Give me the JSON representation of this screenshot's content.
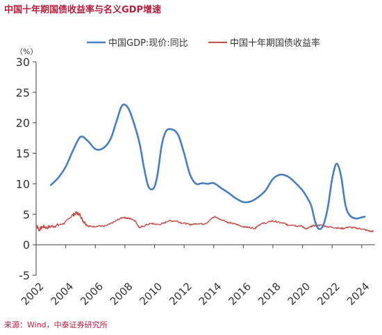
{
  "title": "中国十年期国债收益率与名义GDP增速",
  "source": "来源：Wind，中泰证券研究所",
  "unit_label": "（%）",
  "chart_data": {
    "type": "line",
    "title": "中国十年期国债收益率与名义GDP增速",
    "xlabel": "",
    "ylabel": "（%）",
    "xlim": [
      2002,
      2024.9
    ],
    "ylim": [
      -5,
      30
    ],
    "yticks": [
      -5,
      0,
      5,
      10,
      15,
      20,
      25,
      30
    ],
    "xticks": [
      "2002",
      "2004",
      "2006",
      "2008",
      "2010",
      "2012",
      "2014",
      "2016",
      "2018",
      "2020",
      "2022",
      "2024"
    ],
    "grid": false,
    "legend": "top",
    "series": [
      {
        "name": "中国GDP:现价:同比",
        "color": "#4a7ebb",
        "x": [
          2003.0,
          2003.5,
          2004.0,
          2004.5,
          2005.0,
          2005.5,
          2006.0,
          2006.5,
          2007.0,
          2007.4,
          2007.8,
          2008.2,
          2008.6,
          2009.0,
          2009.3,
          2009.6,
          2009.95,
          2010.2,
          2010.5,
          2010.8,
          2011.2,
          2011.6,
          2012.0,
          2012.4,
          2012.8,
          2013.2,
          2013.6,
          2014.0,
          2014.5,
          2015.0,
          2015.5,
          2016.0,
          2016.5,
          2017.0,
          2017.5,
          2018.0,
          2018.5,
          2019.0,
          2019.5,
          2020.0,
          2020.3,
          2020.6,
          2020.85,
          2021.1,
          2021.4,
          2021.7,
          2022.0,
          2022.3,
          2022.6,
          2022.9,
          2023.2,
          2023.6,
          2024.0,
          2024.2
        ],
        "values": [
          9.8,
          11.0,
          12.8,
          15.5,
          17.7,
          17.0,
          15.7,
          15.8,
          17.2,
          20.0,
          22.8,
          22.5,
          20.0,
          16.5,
          12.5,
          9.5,
          9.3,
          11.5,
          16.5,
          18.7,
          18.9,
          18.0,
          15.0,
          11.5,
          10.0,
          10.1,
          10.0,
          10.1,
          9.3,
          8.5,
          7.6,
          7.0,
          7.1,
          7.8,
          8.9,
          10.8,
          11.5,
          11.2,
          10.2,
          8.9,
          7.8,
          6.3,
          3.8,
          2.6,
          3.2,
          6.0,
          10.8,
          13.3,
          11.3,
          6.5,
          4.8,
          4.3,
          4.5,
          4.6
        ]
      },
      {
        "name": "中国十年期国债收益率",
        "color": "#c0504d",
        "x": [
          2002.0,
          2002.1,
          2002.2,
          2002.3,
          2002.5,
          2002.7,
          2003.0,
          2003.3,
          2003.6,
          2003.9,
          2004.2,
          2004.5,
          2004.7,
          2004.85,
          2005.0,
          2005.15,
          2005.3,
          2005.5,
          2005.7,
          2006.0,
          2006.3,
          2006.6,
          2007.0,
          2007.3,
          2007.6,
          2007.9,
          2008.1,
          2008.3,
          2008.5,
          2008.7,
          2008.9,
          2009.0,
          2009.2,
          2009.5,
          2009.8,
          2010.0,
          2010.3,
          2010.6,
          2010.9,
          2011.2,
          2011.5,
          2011.8,
          2012.1,
          2012.4,
          2012.7,
          2013.0,
          2013.3,
          2013.6,
          2013.9,
          2014.1,
          2014.4,
          2014.7,
          2015.0,
          2015.3,
          2015.6,
          2015.9,
          2016.2,
          2016.5,
          2016.8,
          2017.0,
          2017.3,
          2017.6,
          2017.9,
          2018.2,
          2018.5,
          2018.8,
          2019.0,
          2019.3,
          2019.6,
          2019.9,
          2020.1,
          2020.3,
          2020.5,
          2020.7,
          2021.0,
          2021.3,
          2021.6,
          2021.9,
          2022.2,
          2022.5,
          2022.8,
          2023.1,
          2023.4,
          2023.7,
          2024.0,
          2024.3,
          2024.6,
          2024.8
        ],
        "values": [
          3.2,
          2.9,
          2.4,
          2.7,
          3.0,
          2.8,
          3.0,
          3.1,
          3.3,
          3.5,
          4.3,
          4.9,
          5.2,
          5.1,
          4.8,
          4.0,
          3.6,
          3.1,
          3.0,
          3.0,
          3.1,
          3.0,
          3.4,
          3.8,
          4.2,
          4.5,
          4.4,
          4.3,
          4.2,
          3.9,
          3.1,
          2.8,
          3.0,
          3.3,
          3.5,
          3.4,
          3.3,
          3.5,
          3.9,
          3.9,
          3.9,
          3.6,
          3.5,
          3.3,
          3.4,
          3.5,
          3.4,
          3.7,
          4.4,
          4.6,
          4.2,
          4.0,
          3.6,
          3.5,
          3.3,
          3.0,
          2.9,
          2.8,
          2.7,
          3.2,
          3.5,
          3.6,
          3.9,
          3.8,
          3.6,
          3.5,
          3.2,
          3.3,
          3.1,
          3.1,
          2.8,
          2.6,
          2.9,
          3.1,
          3.2,
          3.2,
          3.0,
          2.9,
          2.8,
          2.7,
          2.7,
          2.9,
          2.8,
          2.7,
          2.6,
          2.4,
          2.2,
          2.2
        ]
      }
    ]
  }
}
